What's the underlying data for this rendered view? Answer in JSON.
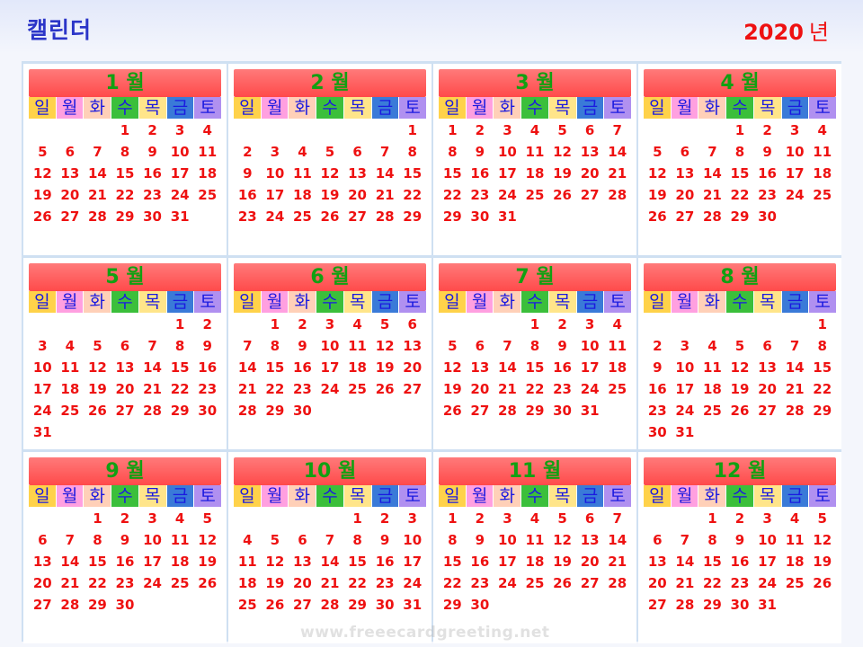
{
  "header": {
    "title": "캘린더",
    "year": "2020",
    "year_label": "년"
  },
  "weekday_labels": [
    "일",
    "월",
    "화",
    "수",
    "목",
    "금",
    "토"
  ],
  "weekday_colors": [
    "#ffd24a",
    "#ffa0e0",
    "#ffd0b8",
    "#3bbf3b",
    "#ffe58a",
    "#3a7ad8",
    "#b090f0"
  ],
  "months": [
    {
      "label": "1 월",
      "start": 3,
      "days": 31
    },
    {
      "label": "2 월",
      "start": 6,
      "days": 29
    },
    {
      "label": "3 월",
      "start": 0,
      "days": 31
    },
    {
      "label": "4 월",
      "start": 3,
      "days": 30
    },
    {
      "label": "5 월",
      "start": 5,
      "days": 31
    },
    {
      "label": "6 월",
      "start": 1,
      "days": 30
    },
    {
      "label": "7 월",
      "start": 3,
      "days": 31
    },
    {
      "label": "8 월",
      "start": 6,
      "days": 31
    },
    {
      "label": "9 월",
      "start": 2,
      "days": 30
    },
    {
      "label": "10 월",
      "start": 4,
      "days": 31
    },
    {
      "label": "11 월",
      "start": 0,
      "days": 30
    },
    {
      "label": "12 월",
      "start": 2,
      "days": 31
    }
  ],
  "watermark": "www.freeecardgreeting.net"
}
